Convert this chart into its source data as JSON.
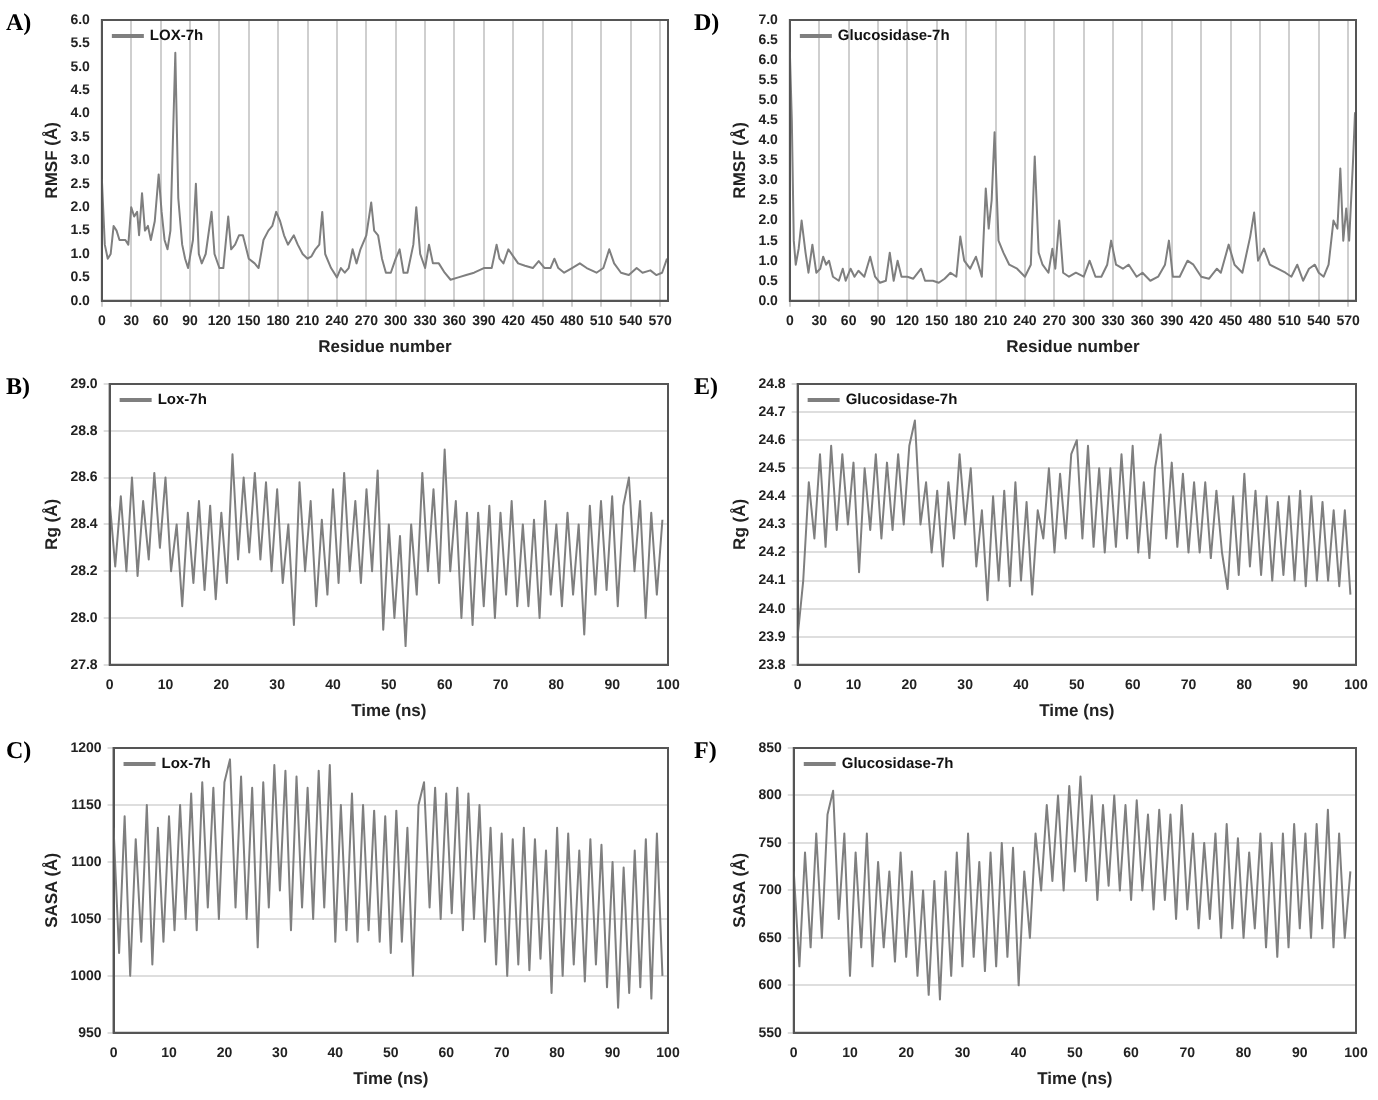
{
  "chart_data": [
    {
      "type": "line",
      "title": "A)",
      "xlabel": "Residue number",
      "ylabel": "RMSF (Å)",
      "legend": "top left",
      "grid": "x",
      "marker": "none",
      "line_style": "solid",
      "xlim": [
        0,
        578
      ],
      "ylim": [
        0,
        6
      ],
      "xticks": [
        0,
        30,
        60,
        90,
        120,
        150,
        180,
        210,
        240,
        270,
        300,
        330,
        360,
        390,
        420,
        450,
        480,
        510,
        540,
        570
      ],
      "yticks": [
        {
          "value": 0,
          "label": "0.0"
        },
        0.5,
        {
          "value": 1,
          "label": "1.0"
        },
        1.5,
        {
          "value": 2,
          "label": "2.0"
        },
        2.5,
        {
          "value": 3,
          "label": "3.0"
        },
        3.5,
        {
          "value": 4,
          "label": "4.0"
        },
        4.5,
        {
          "value": 5,
          "label": "5.0"
        },
        5.5,
        {
          "value": 6,
          "label": "6.0"
        }
      ],
      "series": [
        {
          "name": "LOX-7h",
          "color": "#7f7f7f",
          "x": [
            0,
            3,
            6,
            9,
            12,
            15,
            18,
            24,
            27,
            30,
            33,
            36,
            38,
            41,
            44,
            47,
            50,
            54,
            58,
            61,
            64,
            67,
            70,
            75,
            78,
            82,
            85,
            88,
            93,
            96,
            99,
            102,
            106,
            112,
            115,
            120,
            124,
            129,
            132,
            136,
            140,
            144,
            150,
            156,
            160,
            165,
            170,
            174,
            178,
            182,
            186,
            190,
            196,
            200,
            205,
            210,
            214,
            218,
            222,
            225,
            228,
            234,
            240,
            244,
            248,
            252,
            256,
            260,
            264,
            270,
            275,
            278,
            282,
            286,
            290,
            295,
            300,
            304,
            308,
            312,
            318,
            321,
            325,
            330,
            334,
            338,
            344,
            350,
            356,
            364,
            372,
            380,
            390,
            398,
            403,
            406,
            410,
            415,
            420,
            425,
            432,
            440,
            446,
            452,
            458,
            462,
            466,
            472,
            480,
            488,
            495,
            505,
            512,
            518,
            523,
            530,
            538,
            546,
            552,
            560,
            566,
            572,
            577
          ],
          "values": [
            2.6,
            1.2,
            0.9,
            1.0,
            1.6,
            1.5,
            1.3,
            1.3,
            1.2,
            2.0,
            1.8,
            1.9,
            1.4,
            2.3,
            1.5,
            1.6,
            1.3,
            1.7,
            2.7,
            1.9,
            1.3,
            1.1,
            1.5,
            5.3,
            2.2,
            1.2,
            0.9,
            0.7,
            1.3,
            2.5,
            1.0,
            0.8,
            1.0,
            1.9,
            1.0,
            0.7,
            0.7,
            1.8,
            1.1,
            1.2,
            1.4,
            1.4,
            0.9,
            0.8,
            0.7,
            1.3,
            1.5,
            1.6,
            1.9,
            1.7,
            1.4,
            1.2,
            1.4,
            1.2,
            1.0,
            0.9,
            0.95,
            1.1,
            1.2,
            1.9,
            1.0,
            0.7,
            0.5,
            0.7,
            0.6,
            0.7,
            1.1,
            0.8,
            1.1,
            1.4,
            2.1,
            1.5,
            1.4,
            0.9,
            0.6,
            0.6,
            0.9,
            1.1,
            0.6,
            0.6,
            1.2,
            2.0,
            1.0,
            0.7,
            1.2,
            0.8,
            0.8,
            0.6,
            0.45,
            0.5,
            0.55,
            0.6,
            0.7,
            0.7,
            1.2,
            0.9,
            0.8,
            1.1,
            0.95,
            0.8,
            0.75,
            0.7,
            0.85,
            0.7,
            0.7,
            0.9,
            0.7,
            0.6,
            0.7,
            0.8,
            0.7,
            0.6,
            0.7,
            1.1,
            0.8,
            0.6,
            0.55,
            0.7,
            0.6,
            0.65,
            0.55,
            0.6,
            0.9
          ]
        }
      ]
    },
    {
      "type": "line",
      "title": "D)",
      "xlabel": "Residue number",
      "ylabel": "RMSF (Å)",
      "legend": "top left",
      "grid": "x",
      "marker": "none",
      "line_style": "solid",
      "xlim": [
        0,
        578
      ],
      "ylim": [
        0,
        7
      ],
      "xticks": [
        0,
        30,
        60,
        90,
        120,
        150,
        180,
        210,
        240,
        270,
        300,
        330,
        360,
        390,
        420,
        450,
        480,
        510,
        540,
        570
      ],
      "yticks": [
        {
          "value": 0,
          "label": "0.0"
        },
        0.5,
        {
          "value": 1,
          "label": "1.0"
        },
        1.5,
        {
          "value": 2,
          "label": "2.0"
        },
        2.5,
        {
          "value": 3,
          "label": "3.0"
        },
        3.5,
        {
          "value": 4,
          "label": "4.0"
        },
        4.5,
        {
          "value": 5,
          "label": "5.0"
        },
        5.5,
        {
          "value": 6,
          "label": "6.0"
        },
        6.5,
        {
          "value": 7,
          "label": "7.0"
        }
      ],
      "series": [
        {
          "name": "Glucosidase-7h",
          "color": "#7f7f7f",
          "x": [
            0,
            2,
            4,
            6,
            9,
            12,
            16,
            19,
            23,
            27,
            31,
            34,
            37,
            40,
            44,
            50,
            54,
            57,
            62,
            66,
            70,
            76,
            82,
            87,
            92,
            98,
            102,
            106,
            110,
            114,
            120,
            126,
            134,
            138,
            146,
            152,
            158,
            164,
            170,
            174,
            178,
            184,
            190,
            196,
            200,
            203,
            206,
            209,
            213,
            218,
            224,
            232,
            240,
            246,
            250,
            254,
            258,
            264,
            268,
            271,
            275,
            279,
            285,
            292,
            300,
            306,
            312,
            318,
            324,
            328,
            333,
            340,
            346,
            354,
            360,
            368,
            376,
            383,
            387,
            391,
            398,
            406,
            412,
            420,
            428,
            436,
            440,
            448,
            454,
            462,
            470,
            474,
            478,
            484,
            490,
            498,
            506,
            512,
            518,
            524,
            530,
            536,
            540,
            545,
            550,
            555,
            559,
            562,
            565,
            568,
            571,
            575,
            577
          ],
          "values": [
            6.2,
            4.5,
            1.5,
            0.9,
            1.3,
            2.0,
            1.2,
            0.7,
            1.4,
            0.7,
            0.8,
            1.1,
            0.9,
            1.0,
            0.6,
            0.5,
            0.8,
            0.5,
            0.8,
            0.6,
            0.75,
            0.6,
            1.1,
            0.6,
            0.45,
            0.5,
            1.2,
            0.5,
            1.0,
            0.6,
            0.6,
            0.55,
            0.8,
            0.5,
            0.5,
            0.45,
            0.55,
            0.7,
            0.6,
            1.6,
            1.0,
            0.8,
            1.1,
            0.6,
            2.8,
            1.8,
            2.5,
            4.2,
            1.5,
            1.2,
            0.9,
            0.8,
            0.6,
            0.9,
            3.6,
            1.2,
            0.9,
            0.7,
            1.3,
            0.8,
            2.0,
            0.7,
            0.6,
            0.7,
            0.6,
            1.0,
            0.6,
            0.6,
            0.9,
            1.5,
            0.9,
            0.8,
            0.9,
            0.6,
            0.7,
            0.5,
            0.6,
            0.9,
            1.5,
            0.6,
            0.6,
            1.0,
            0.9,
            0.6,
            0.55,
            0.8,
            0.7,
            1.4,
            0.9,
            0.7,
            1.6,
            2.2,
            1.0,
            1.3,
            0.9,
            0.8,
            0.7,
            0.6,
            0.9,
            0.5,
            0.8,
            0.9,
            0.7,
            0.6,
            0.9,
            2.0,
            1.8,
            3.3,
            1.5,
            2.3,
            1.5,
            3.5,
            4.7
          ]
        }
      ]
    },
    {
      "type": "line",
      "title": "B)",
      "xlabel": "Time (ns)",
      "ylabel": "Rg (Å)",
      "legend": "top left",
      "grid": "y",
      "marker": "none",
      "line_style": "solid",
      "xlim": [
        0,
        100
      ],
      "ylim": [
        27.8,
        29
      ],
      "xticks": [
        0,
        10,
        20,
        30,
        40,
        50,
        60,
        70,
        80,
        90,
        100
      ],
      "yticks": [
        27.8,
        {
          "value": 28,
          "label": "28.0"
        },
        28.2,
        28.4,
        28.6,
        28.8,
        {
          "value": 29,
          "label": "29.0"
        }
      ],
      "x": [
        0,
        1,
        2,
        3,
        4,
        5,
        6,
        7,
        8,
        9,
        10,
        11,
        12,
        13,
        14,
        15,
        16,
        17,
        18,
        19,
        20,
        21,
        22,
        23,
        24,
        25,
        26,
        27,
        28,
        29,
        30,
        31,
        32,
        33,
        34,
        35,
        36,
        37,
        38,
        39,
        40,
        41,
        42,
        43,
        44,
        45,
        46,
        47,
        48,
        49,
        50,
        51,
        52,
        53,
        54,
        55,
        56,
        57,
        58,
        59,
        60,
        61,
        62,
        63,
        64,
        65,
        66,
        67,
        68,
        69,
        70,
        71,
        72,
        73,
        74,
        75,
        76,
        77,
        78,
        79,
        80,
        81,
        82,
        83,
        84,
        85,
        86,
        87,
        88,
        89,
        90,
        91,
        92,
        93,
        94,
        95,
        96,
        97,
        98,
        99
      ],
      "series": [
        {
          "name": "Lox-7h",
          "color": "#7f7f7f",
          "values": [
            28.5,
            28.22,
            28.52,
            28.2,
            28.6,
            28.18,
            28.5,
            28.25,
            28.62,
            28.3,
            28.6,
            28.2,
            28.4,
            28.05,
            28.45,
            28.15,
            28.5,
            28.12,
            28.48,
            28.08,
            28.45,
            28.15,
            28.7,
            28.25,
            28.6,
            28.28,
            28.62,
            28.25,
            28.58,
            28.2,
            28.55,
            28.15,
            28.4,
            27.97,
            28.58,
            28.2,
            28.5,
            28.05,
            28.42,
            28.1,
            28.55,
            28.15,
            28.62,
            28.2,
            28.5,
            28.15,
            28.55,
            28.2,
            28.63,
            27.95,
            28.4,
            28.0,
            28.35,
            27.88,
            28.4,
            28.1,
            28.62,
            28.2,
            28.55,
            28.15,
            28.72,
            28.2,
            28.5,
            28.0,
            28.45,
            27.97,
            28.45,
            28.05,
            28.48,
            28.0,
            28.45,
            28.1,
            28.5,
            28.05,
            28.4,
            28.05,
            28.42,
            28.0,
            28.5,
            28.1,
            28.4,
            28.05,
            28.45,
            28.1,
            28.4,
            27.93,
            28.48,
            28.1,
            28.5,
            28.12,
            28.52,
            28.05,
            28.48,
            28.6,
            28.2,
            28.5,
            28.0,
            28.45,
            28.1,
            28.42
          ]
        }
      ]
    },
    {
      "type": "line",
      "title": "E)",
      "xlabel": "Time (ns)",
      "ylabel": "Rg (Å)",
      "legend": "top left",
      "grid": "y",
      "marker": "none",
      "line_style": "solid",
      "xlim": [
        0,
        100
      ],
      "ylim": [
        23.8,
        24.8
      ],
      "xticks": [
        0,
        10,
        20,
        30,
        40,
        50,
        60,
        70,
        80,
        90,
        100
      ],
      "yticks": [
        23.8,
        23.9,
        {
          "value": 24,
          "label": "24.0"
        },
        24.1,
        24.2,
        24.3,
        24.4,
        24.5,
        24.6,
        24.7,
        24.8
      ],
      "x": [
        0,
        1,
        2,
        3,
        4,
        5,
        6,
        7,
        8,
        9,
        10,
        11,
        12,
        13,
        14,
        15,
        16,
        17,
        18,
        19,
        20,
        21,
        22,
        23,
        24,
        25,
        26,
        27,
        28,
        29,
        30,
        31,
        32,
        33,
        34,
        35,
        36,
        37,
        38,
        39,
        40,
        41,
        42,
        43,
        44,
        45,
        46,
        47,
        48,
        49,
        50,
        51,
        52,
        53,
        54,
        55,
        56,
        57,
        58,
        59,
        60,
        61,
        62,
        63,
        64,
        65,
        66,
        67,
        68,
        69,
        70,
        71,
        72,
        73,
        74,
        75,
        76,
        77,
        78,
        79,
        80,
        81,
        82,
        83,
        84,
        85,
        86,
        87,
        88,
        89,
        90,
        91,
        92,
        93,
        94,
        95,
        96,
        97,
        98,
        99
      ],
      "series": [
        {
          "name": "Glucosidase-7h",
          "color": "#7f7f7f",
          "values": [
            23.9,
            24.1,
            24.45,
            24.25,
            24.55,
            24.22,
            24.58,
            24.28,
            24.55,
            24.3,
            24.52,
            24.13,
            24.5,
            24.28,
            24.55,
            24.25,
            24.52,
            24.28,
            24.55,
            24.3,
            24.58,
            24.67,
            24.3,
            24.45,
            24.2,
            24.42,
            24.15,
            24.45,
            24.25,
            24.55,
            24.3,
            24.5,
            24.15,
            24.35,
            24.03,
            24.4,
            24.1,
            24.42,
            24.08,
            24.45,
            24.1,
            24.38,
            24.05,
            24.35,
            24.25,
            24.5,
            24.2,
            24.48,
            24.25,
            24.55,
            24.6,
            24.25,
            24.58,
            24.22,
            24.5,
            24.2,
            24.5,
            24.22,
            24.55,
            24.25,
            24.58,
            24.2,
            24.45,
            24.18,
            24.5,
            24.62,
            24.25,
            24.52,
            24.22,
            24.48,
            24.2,
            24.45,
            24.2,
            24.45,
            24.18,
            24.42,
            24.2,
            24.07,
            24.4,
            24.12,
            24.48,
            24.15,
            24.42,
            24.12,
            24.4,
            24.1,
            24.38,
            24.12,
            24.4,
            24.1,
            24.42,
            24.08,
            24.4,
            24.1,
            24.38,
            24.1,
            24.35,
            24.08,
            24.35,
            24.05
          ]
        }
      ]
    },
    {
      "type": "line",
      "title": "C)",
      "xlabel": "Time (ns)",
      "ylabel": "SASA (Å)",
      "legend": "top left",
      "grid": "y",
      "marker": "none",
      "line_style": "solid",
      "xlim": [
        0,
        100
      ],
      "ylim": [
        950,
        1200
      ],
      "xticks": [
        0,
        10,
        20,
        30,
        40,
        50,
        60,
        70,
        80,
        90,
        100
      ],
      "yticks": [
        950,
        1000,
        1050,
        1100,
        1150,
        1200
      ],
      "x": [
        0,
        1,
        2,
        3,
        4,
        5,
        6,
        7,
        8,
        9,
        10,
        11,
        12,
        13,
        14,
        15,
        16,
        17,
        18,
        19,
        20,
        21,
        22,
        23,
        24,
        25,
        26,
        27,
        28,
        29,
        30,
        31,
        32,
        33,
        34,
        35,
        36,
        37,
        38,
        39,
        40,
        41,
        42,
        43,
        44,
        45,
        46,
        47,
        48,
        49,
        50,
        51,
        52,
        53,
        54,
        55,
        56,
        57,
        58,
        59,
        60,
        61,
        62,
        63,
        64,
        65,
        66,
        67,
        68,
        69,
        70,
        71,
        72,
        73,
        74,
        75,
        76,
        77,
        78,
        79,
        80,
        81,
        82,
        83,
        84,
        85,
        86,
        87,
        88,
        89,
        90,
        91,
        92,
        93,
        94,
        95,
        96,
        97,
        98,
        99
      ],
      "series": [
        {
          "name": "Lox-7h",
          "color": "#7f7f7f",
          "values": [
            1130,
            1020,
            1140,
            1000,
            1120,
            1030,
            1150,
            1010,
            1130,
            1030,
            1140,
            1040,
            1150,
            1050,
            1160,
            1040,
            1170,
            1060,
            1165,
            1050,
            1170,
            1190,
            1060,
            1175,
            1050,
            1165,
            1025,
            1170,
            1060,
            1185,
            1075,
            1180,
            1040,
            1175,
            1060,
            1165,
            1050,
            1180,
            1060,
            1185,
            1030,
            1150,
            1040,
            1160,
            1030,
            1150,
            1040,
            1145,
            1030,
            1140,
            1020,
            1145,
            1030,
            1130,
            1000,
            1150,
            1170,
            1060,
            1165,
            1050,
            1160,
            1055,
            1165,
            1040,
            1160,
            1050,
            1150,
            1030,
            1130,
            1010,
            1125,
            1000,
            1120,
            1010,
            1130,
            1005,
            1120,
            1015,
            1110,
            985,
            1130,
            1000,
            1125,
            1010,
            1110,
            995,
            1120,
            1010,
            1115,
            990,
            1100,
            972,
            1095,
            985,
            1110,
            990,
            1120,
            980,
            1125,
            1000
          ]
        }
      ]
    },
    {
      "type": "line",
      "title": "F)",
      "xlabel": "Time (ns)",
      "ylabel": "SASA (Å)",
      "legend": "top left",
      "grid": "y",
      "marker": "none",
      "line_style": "solid",
      "xlim": [
        0,
        100
      ],
      "ylim": [
        550,
        850
      ],
      "xticks": [
        0,
        10,
        20,
        30,
        40,
        50,
        60,
        70,
        80,
        90,
        100
      ],
      "yticks": [
        550,
        600,
        650,
        700,
        750,
        800,
        850
      ],
      "x": [
        0,
        1,
        2,
        3,
        4,
        5,
        6,
        7,
        8,
        9,
        10,
        11,
        12,
        13,
        14,
        15,
        16,
        17,
        18,
        19,
        20,
        21,
        22,
        23,
        24,
        25,
        26,
        27,
        28,
        29,
        30,
        31,
        32,
        33,
        34,
        35,
        36,
        37,
        38,
        39,
        40,
        41,
        42,
        43,
        44,
        45,
        46,
        47,
        48,
        49,
        50,
        51,
        52,
        53,
        54,
        55,
        56,
        57,
        58,
        59,
        60,
        61,
        62,
        63,
        64,
        65,
        66,
        67,
        68,
        69,
        70,
        71,
        72,
        73,
        74,
        75,
        76,
        77,
        78,
        79,
        80,
        81,
        82,
        83,
        84,
        85,
        86,
        87,
        88,
        89,
        90,
        91,
        92,
        93,
        94,
        95,
        96,
        97,
        98,
        99
      ],
      "series": [
        {
          "name": "Glucosidase-7h",
          "color": "#7f7f7f",
          "values": [
            720,
            620,
            740,
            640,
            760,
            650,
            780,
            805,
            670,
            760,
            610,
            740,
            640,
            760,
            620,
            730,
            640,
            720,
            625,
            740,
            630,
            720,
            610,
            700,
            590,
            710,
            585,
            720,
            610,
            740,
            620,
            760,
            630,
            730,
            615,
            740,
            620,
            750,
            630,
            745,
            600,
            720,
            650,
            760,
            700,
            790,
            710,
            800,
            700,
            810,
            720,
            820,
            710,
            800,
            690,
            790,
            705,
            800,
            700,
            790,
            690,
            795,
            700,
            780,
            680,
            785,
            690,
            780,
            670,
            790,
            680,
            760,
            660,
            750,
            670,
            760,
            650,
            770,
            660,
            755,
            650,
            740,
            660,
            760,
            640,
            750,
            630,
            760,
            640,
            770,
            660,
            760,
            650,
            770,
            660,
            785,
            640,
            760,
            650,
            720
          ]
        }
      ]
    }
  ]
}
